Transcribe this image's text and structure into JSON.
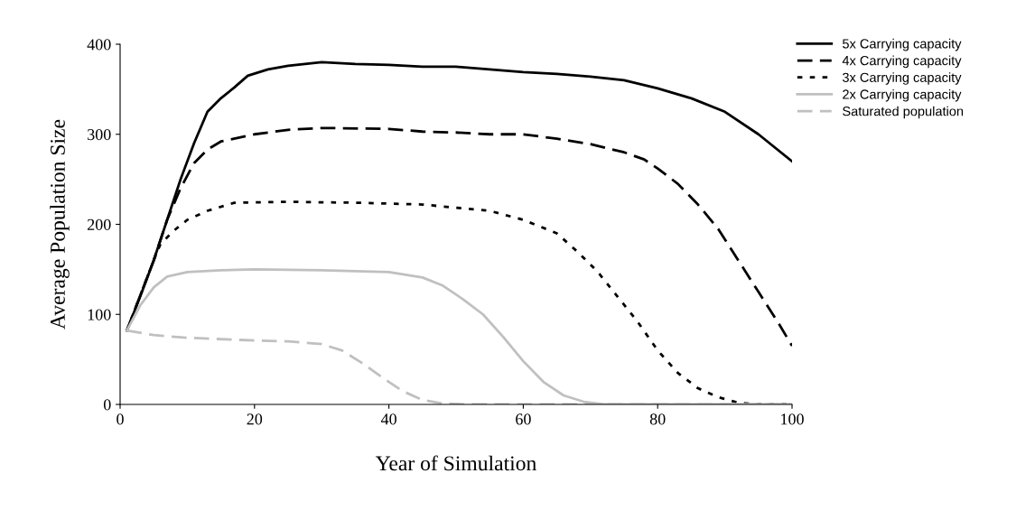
{
  "chart_data": {
    "type": "line",
    "xlabel": "Year of Simulation",
    "ylabel": "Average Population Size",
    "xlim": [
      0,
      100
    ],
    "xticks": [
      0,
      20,
      40,
      60,
      80,
      100
    ],
    "ylim": [
      0,
      400
    ],
    "yticks": [
      0,
      100,
      200,
      300,
      400
    ],
    "grid": false,
    "legend": "top right",
    "marker": "none",
    "series": [
      {
        "name": "5x Carrying capacity",
        "color": "#000000",
        "line_style": "solid",
        "x": [
          1,
          3,
          5,
          7,
          9,
          11,
          13,
          15,
          17,
          19,
          22,
          25,
          30,
          35,
          40,
          45,
          50,
          55,
          60,
          65,
          70,
          75,
          80,
          85,
          90,
          95,
          100
        ],
        "values": [
          82,
          120,
          160,
          205,
          250,
          290,
          325,
          340,
          352,
          365,
          372,
          376,
          380,
          378,
          377,
          375,
          375,
          372,
          369,
          367,
          364,
          360,
          351,
          340,
          325,
          300,
          270
        ]
      },
      {
        "name": "4x Carrying capacity",
        "color": "#000000",
        "line_style": "dashed",
        "x": [
          1,
          5,
          7,
          9,
          11,
          13,
          15,
          20,
          25,
          30,
          40,
          45,
          50,
          55,
          60,
          65,
          70,
          75,
          78,
          80,
          83,
          86,
          89,
          92,
          95,
          98,
          100
        ],
        "values": [
          82,
          160,
          205,
          240,
          268,
          283,
          292,
          300,
          305,
          307,
          306,
          303,
          302,
          300,
          300,
          295,
          289,
          280,
          272,
          262,
          245,
          222,
          195,
          160,
          125,
          90,
          65
        ]
      },
      {
        "name": "3x Carrying capacity",
        "color": "#000000",
        "line_style": "dotted",
        "x": [
          1,
          5,
          6,
          8,
          10,
          13,
          17,
          25,
          35,
          45,
          55,
          60,
          65,
          68,
          71,
          74,
          77,
          80,
          83,
          86,
          89,
          92,
          95,
          100
        ],
        "values": [
          82,
          160,
          178,
          193,
          205,
          215,
          224,
          225,
          224,
          222,
          215,
          205,
          190,
          170,
          148,
          120,
          92,
          60,
          35,
          18,
          8,
          2,
          0,
          0
        ]
      },
      {
        "name": "2x Carrying capacity",
        "color": "#c0c0c0",
        "line_style": "solid",
        "x": [
          1,
          3,
          5,
          7,
          10,
          15,
          20,
          30,
          40,
          45,
          48,
          51,
          54,
          57,
          60,
          63,
          66,
          69,
          72,
          100
        ],
        "values": [
          82,
          110,
          130,
          142,
          147,
          149,
          150,
          149,
          147,
          141,
          132,
          117,
          100,
          75,
          48,
          25,
          10,
          3,
          0,
          0
        ]
      },
      {
        "name": "Saturated population",
        "color": "#c0c0c0",
        "line_style": "dashed",
        "x": [
          1,
          5,
          10,
          20,
          25,
          30,
          33,
          36,
          39,
          42,
          45,
          48,
          52,
          100
        ],
        "values": [
          82,
          77,
          74,
          71,
          70,
          67,
          60,
          46,
          30,
          15,
          5,
          1,
          0,
          0
        ]
      }
    ]
  }
}
